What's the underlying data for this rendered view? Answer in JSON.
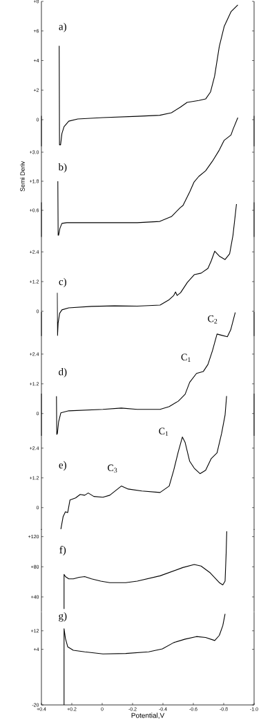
{
  "chart_data": [
    {
      "type": "line",
      "marker": "none",
      "xlim": [
        0.4,
        -1.0
      ],
      "ylim": [
        -1.8,
        8
      ],
      "tick_labels": "y",
      "yticks": [
        0,
        {
          "value": 2,
          "label": "+2"
        },
        {
          "value": 4,
          "label": "+4"
        },
        {
          "value": 6,
          "label": "+6"
        },
        {
          "value": 8,
          "label": "+8"
        }
      ],
      "annotations": [
        "a)"
      ],
      "series": [
        {
          "color": "#000000",
          "x": [
            0.283,
            0.281,
            0.274,
            0.265,
            0.251,
            0.22,
            0.161,
            -0.005,
            -0.231,
            -0.379,
            -0.456,
            -0.514,
            -0.559,
            -0.636,
            -0.681,
            -0.713,
            -0.74,
            -0.771,
            -0.803,
            -0.848,
            -0.893
          ],
          "values": [
            5.0,
            -1.7,
            -1.7,
            -0.93,
            -0.47,
            -0.1,
            0.05,
            0.14,
            0.23,
            0.3,
            0.47,
            0.84,
            1.17,
            1.3,
            1.4,
            1.87,
            2.94,
            4.95,
            6.3,
            7.3,
            7.76
          ]
        }
      ]
    },
    {
      "type": "line",
      "marker": "none",
      "xlim": [
        0.4,
        -1.0
      ],
      "ylim": [
        -0.5,
        4.5
      ],
      "tick_labels": "y",
      "ylabel": "Semi Deriv",
      "yticks": [
        {
          "value": 0.6,
          "label": "+0.6"
        },
        {
          "value": 1.8,
          "label": "+1.8"
        },
        {
          "value": 3.0,
          "label": "+3.0"
        }
      ],
      "annotations": [
        "b)"
      ],
      "series": [
        {
          "color": "#000000",
          "x": [
            0.292,
            0.29,
            0.287,
            0.278,
            0.265,
            0.233,
            -0.005,
            -0.231,
            -0.379,
            -0.456,
            -0.514,
            -0.532,
            -0.577,
            -0.605,
            -0.636,
            -0.681,
            -0.726,
            -0.771,
            -0.803,
            -0.848,
            -0.861,
            -0.893
          ],
          "values": [
            1.8,
            -0.43,
            -0.43,
            -0.14,
            0.06,
            0.09,
            0.09,
            0.09,
            0.14,
            0.34,
            0.71,
            0.8,
            1.37,
            1.77,
            2.0,
            2.23,
            2.63,
            3.09,
            3.49,
            3.71,
            3.94,
            4.43
          ]
        }
      ]
    },
    {
      "type": "line",
      "marker": "none",
      "xlim": [
        0.4,
        -1.0
      ],
      "ylim": [
        -1.0,
        4.4
      ],
      "tick_labels": "y",
      "yticks": [
        0,
        {
          "value": 1.2,
          "label": "+1.2"
        },
        {
          "value": 2.4,
          "label": "+2.4"
        }
      ],
      "annotations": [
        "c)"
      ],
      "series": [
        {
          "color": "#000000",
          "x": [
            0.296,
            0.294,
            0.29,
            0.28,
            0.265,
            0.22,
            0.07,
            -0.081,
            -0.231,
            -0.381,
            -0.441,
            -0.471,
            -0.483,
            -0.493,
            -0.516,
            -0.561,
            -0.606,
            -0.651,
            -0.696,
            -0.718,
            -0.741,
            -0.771,
            -0.809,
            -0.839,
            -0.861,
            -0.884
          ],
          "values": [
            0.75,
            -0.98,
            -0.47,
            -0.08,
            0.06,
            0.14,
            0.2,
            0.22,
            0.21,
            0.25,
            0.47,
            0.64,
            0.78,
            0.64,
            0.75,
            1.17,
            1.48,
            1.54,
            1.73,
            2.04,
            2.43,
            2.23,
            2.09,
            2.32,
            3.07,
            4.33
          ]
        }
      ]
    },
    {
      "type": "line",
      "marker": "none",
      "xlim": [
        0.4,
        -1.0
      ],
      "ylim": [
        -0.9,
        4.1
      ],
      "tick_labels": "y",
      "yticks": [
        0,
        {
          "value": 1.2,
          "label": "+1.2"
        },
        {
          "value": 2.4,
          "label": "+2.4"
        }
      ],
      "annotations": [
        "d)",
        "C$_{1}$",
        "C$_{2}$"
      ],
      "series": [
        {
          "color": "#000000",
          "x": [
            0.301,
            0.299,
            0.295,
            0.287,
            0.272,
            0.22,
            -0.005,
            -0.126,
            -0.231,
            -0.381,
            -0.441,
            -0.501,
            -0.516,
            -0.546,
            -0.576,
            -0.621,
            -0.666,
            -0.696,
            -0.726,
            -0.756,
            -0.786,
            -0.824,
            -0.846,
            -0.876
          ],
          "values": [
            0.7,
            -0.84,
            -0.81,
            -0.34,
            0.03,
            0.11,
            0.17,
            0.22,
            0.17,
            0.17,
            0.28,
            0.5,
            0.59,
            0.78,
            1.26,
            1.62,
            1.7,
            1.98,
            2.54,
            3.21,
            3.16,
            3.1,
            3.38,
            4.08
          ]
        }
      ]
    },
    {
      "type": "line",
      "marker": "none",
      "xlim": [
        0.4,
        -1.0
      ],
      "ylim": [
        -0.9,
        4.6
      ],
      "tick_labels": "y",
      "yticks": [
        0,
        {
          "value": 1.2,
          "label": "+1.2"
        },
        {
          "value": 2.4,
          "label": "+2.4"
        }
      ],
      "annotations": [
        "e)",
        "C$_{1}$",
        "C$_{3}$"
      ],
      "series": [
        {
          "color": "#000000",
          "x": [
            0.272,
            0.257,
            0.242,
            0.227,
            0.212,
            0.175,
            0.145,
            0.115,
            0.092,
            0.055,
            -0.005,
            -0.05,
            -0.126,
            -0.171,
            -0.261,
            -0.381,
            -0.441,
            -0.471,
            -0.501,
            -0.528,
            -0.546,
            -0.576,
            -0.606,
            -0.644,
            -0.681,
            -0.718,
            -0.756,
            -0.786,
            -0.809,
            -0.819
          ],
          "values": [
            -0.87,
            -0.36,
            -0.17,
            -0.2,
            0.31,
            0.39,
            0.53,
            0.5,
            0.59,
            0.45,
            0.42,
            0.5,
            0.87,
            0.75,
            0.67,
            0.61,
            0.87,
            1.51,
            2.26,
            2.85,
            2.63,
            1.87,
            1.59,
            1.37,
            1.51,
            1.98,
            2.21,
            2.99,
            3.74,
            4.5
          ]
        }
      ]
    },
    {
      "type": "line",
      "marker": "none",
      "xlim": [
        0.4,
        -1.0
      ],
      "ylim": [
        20,
        130
      ],
      "tick_labels": "y",
      "yticks": [
        {
          "value": 40,
          "label": "+40"
        },
        {
          "value": 80,
          "label": "+80"
        },
        {
          "value": 120,
          "label": "+120"
        }
      ],
      "annotations": [
        "f)"
      ],
      "series": [
        {
          "color": "#000000",
          "x": [
            0.251,
            0.251,
            0.242,
            0.22,
            0.19,
            0.152,
            0.115,
            0.07,
            0.01,
            -0.05,
            -0.155,
            -0.231,
            -0.381,
            -0.531,
            -0.606,
            -0.651,
            -0.711,
            -0.771,
            -0.794,
            -0.809,
            -0.816,
            -0.82
          ],
          "values": [
            24,
            70,
            67,
            64,
            64,
            66,
            67,
            64,
            61,
            59,
            59,
            61,
            68,
            79,
            83,
            81,
            72,
            59,
            56,
            61,
            98,
            127
          ]
        }
      ]
    },
    {
      "type": "line",
      "marker": "none",
      "xlim": [
        0.4,
        -1.0
      ],
      "ylim": [
        -20,
        20
      ],
      "xlabel": "Potential,V",
      "yticks": [
        -20,
        {
          "value": 4,
          "label": "+4"
        },
        {
          "value": 12,
          "label": "+12"
        }
      ],
      "xticks": [
        {
          "value": 0.4,
          "label": "+0.4"
        },
        {
          "value": 0.2,
          "label": "+0.2"
        },
        0,
        -0.2,
        -0.4,
        -0.6,
        -0.8,
        {
          "value": -1.0,
          "label": "-1.0"
        }
      ],
      "annotations": [
        "g)"
      ],
      "series": [
        {
          "color": "#000000",
          "x": [
            0.251,
            0.251,
            0.242,
            0.227,
            0.19,
            0.115,
            -0.005,
            -0.155,
            -0.306,
            -0.396,
            -0.471,
            -0.546,
            -0.621,
            -0.681,
            -0.741,
            -0.771,
            -0.794,
            -0.809
          ],
          "values": [
            -20,
            12.9,
            8.7,
            5.1,
            3.6,
            2.9,
            2,
            2.2,
            2.9,
            4.2,
            6.9,
            8.4,
            9.5,
            9.1,
            7.8,
            10,
            14.2,
            19.3
          ]
        }
      ]
    }
  ]
}
